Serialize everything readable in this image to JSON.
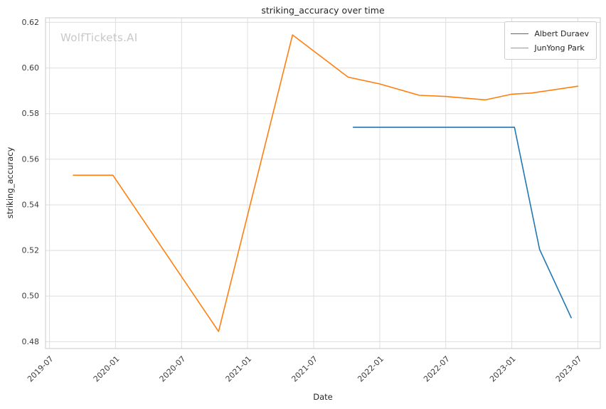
{
  "chart_data": {
    "type": "line",
    "title": "striking_accuracy over time",
    "xlabel": "Date",
    "ylabel": "striking_accuracy",
    "watermark": "WolfTickets.AI",
    "grid": true,
    "legend_position": "top-right",
    "xlim": [
      2019.47,
      2023.67
    ],
    "ylim": [
      0.477,
      0.622
    ],
    "x_ticks": [
      {
        "label": "2019-07",
        "x": 2019.5
      },
      {
        "label": "2020-01",
        "x": 2020.0
      },
      {
        "label": "2020-07",
        "x": 2020.5
      },
      {
        "label": "2021-01",
        "x": 2021.0
      },
      {
        "label": "2021-07",
        "x": 2021.5
      },
      {
        "label": "2022-01",
        "x": 2022.0
      },
      {
        "label": "2022-07",
        "x": 2022.5
      },
      {
        "label": "2023-01",
        "x": 2023.0
      },
      {
        "label": "2023-07",
        "x": 2023.5
      }
    ],
    "y_ticks": [
      {
        "label": "0.48",
        "value": 0.48
      },
      {
        "label": "0.50",
        "value": 0.5
      },
      {
        "label": "0.52",
        "value": 0.52
      },
      {
        "label": "0.54",
        "value": 0.54
      },
      {
        "label": "0.56",
        "value": 0.56
      },
      {
        "label": "0.58",
        "value": 0.58
      },
      {
        "label": "0.60",
        "value": 0.6
      },
      {
        "label": "0.62",
        "value": 0.62
      }
    ],
    "series": [
      {
        "name": "Albert Duraev",
        "color": "#1f77b4",
        "points": [
          {
            "date": "2021-10",
            "x": 2021.8,
            "y": 0.574
          },
          {
            "date": "2023-01",
            "x": 2023.02,
            "y": 0.574
          },
          {
            "date": "2023-03",
            "x": 2023.21,
            "y": 0.5205
          },
          {
            "date": "2023-06",
            "x": 2023.45,
            "y": 0.4905
          }
        ]
      },
      {
        "name": "JunYong Park",
        "color": "#ff7f0e",
        "points": [
          {
            "date": "2019-09",
            "x": 2019.68,
            "y": 0.553
          },
          {
            "date": "2019-12",
            "x": 2019.98,
            "y": 0.553
          },
          {
            "date": "2020-10",
            "x": 2020.78,
            "y": 0.4845
          },
          {
            "date": "2021-05",
            "x": 2021.34,
            "y": 0.6145
          },
          {
            "date": "2021-10",
            "x": 2021.76,
            "y": 0.596
          },
          {
            "date": "2022-01",
            "x": 2022.0,
            "y": 0.593
          },
          {
            "date": "2022-04",
            "x": 2022.3,
            "y": 0.588
          },
          {
            "date": "2022-07",
            "x": 2022.5,
            "y": 0.5875
          },
          {
            "date": "2022-10",
            "x": 2022.8,
            "y": 0.586
          },
          {
            "date": "2023-01",
            "x": 2023.0,
            "y": 0.5885
          },
          {
            "date": "2023-02",
            "x": 2023.15,
            "y": 0.589
          },
          {
            "date": "2023-07",
            "x": 2023.5,
            "y": 0.592
          }
        ]
      }
    ],
    "colors": {
      "grid": "#dedede",
      "spine": "#c9c9c9",
      "tick_text": "#3d3d3d",
      "title_text": "#262626",
      "watermark": "#c8c8c8"
    }
  }
}
